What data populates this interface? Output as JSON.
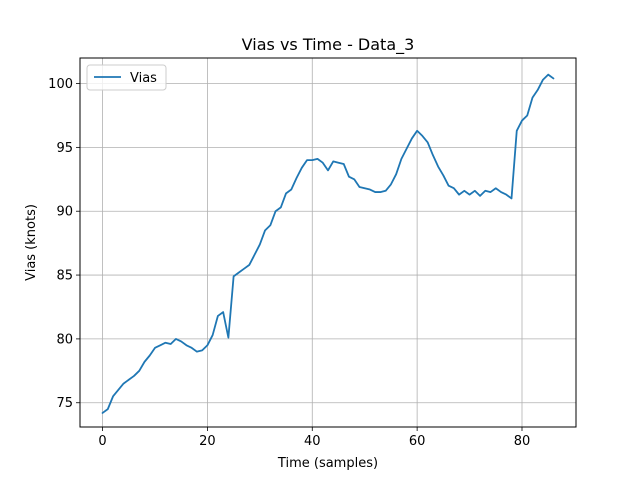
{
  "chart_data": {
    "type": "line",
    "title": "Vias vs Time - Data_3",
    "xlabel": "Time (samples)",
    "ylabel": "Vias (knots)",
    "xlim": [
      -4.3,
      90.3
    ],
    "ylim": [
      73.1,
      102.0
    ],
    "xticks": [
      0,
      20,
      40,
      60,
      80
    ],
    "yticks": [
      75,
      80,
      85,
      90,
      95,
      100
    ],
    "grid": true,
    "legend_position": "top-left",
    "series": [
      {
        "name": "Vias",
        "color": "#1f77b4",
        "x": [
          0,
          1,
          2,
          3,
          4,
          5,
          6,
          7,
          8,
          9,
          10,
          11,
          12,
          13,
          14,
          15,
          16,
          17,
          18,
          19,
          20,
          21,
          22,
          23,
          24,
          25,
          26,
          27,
          28,
          29,
          30,
          31,
          32,
          33,
          34,
          35,
          36,
          37,
          38,
          39,
          40,
          41,
          42,
          43,
          44,
          45,
          46,
          47,
          48,
          49,
          50,
          51,
          52,
          53,
          54,
          55,
          56,
          57,
          58,
          59,
          60,
          61,
          62,
          63,
          64,
          65,
          66,
          67,
          68,
          69,
          70,
          71,
          72,
          73,
          74,
          75,
          76,
          77,
          78,
          79,
          80,
          81,
          82,
          83,
          84,
          85,
          86
        ],
        "y": [
          74.2,
          74.5,
          75.5,
          76.0,
          76.5,
          76.8,
          77.1,
          77.5,
          78.2,
          78.7,
          79.3,
          79.5,
          79.7,
          79.6,
          80.0,
          79.8,
          79.5,
          79.3,
          79.0,
          79.1,
          79.5,
          80.3,
          81.8,
          82.1,
          80.1,
          84.9,
          85.2,
          85.5,
          85.8,
          86.6,
          87.4,
          88.5,
          88.9,
          90.0,
          90.3,
          91.4,
          91.7,
          92.6,
          93.4,
          94.0,
          94.0,
          94.1,
          93.8,
          93.2,
          93.9,
          93.8,
          93.7,
          92.7,
          92.5,
          91.9,
          91.8,
          91.7,
          91.5,
          91.5,
          91.6,
          92.1,
          92.9,
          94.1,
          94.9,
          95.7,
          96.3,
          95.9,
          95.4,
          94.4,
          93.5,
          92.8,
          92.0,
          91.8,
          91.3,
          91.6,
          91.3,
          91.6,
          91.2,
          91.6,
          91.5,
          91.8,
          91.5,
          91.3,
          91.0,
          96.3,
          97.1,
          97.5,
          98.9,
          99.5,
          100.3,
          100.7,
          100.4
        ]
      }
    ]
  }
}
